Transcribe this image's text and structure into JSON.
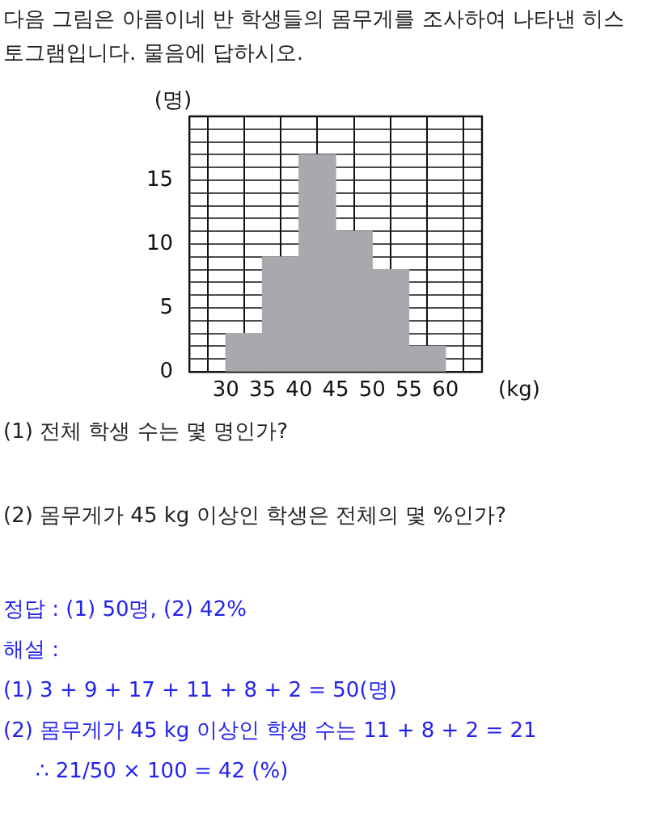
{
  "chart_data": {
    "type": "histogram",
    "title": "다음 그림은 아름이네 반 학생들의 몸무게를 조사하여 나타낸 히스토그램입니다. 물음에 답하시오.",
    "xlabel": "(kg)",
    "ylabel": "(명)",
    "bins": [
      30,
      35,
      40,
      45,
      50,
      55,
      60
    ],
    "values": [
      3,
      9,
      17,
      11,
      8,
      2
    ],
    "color": "#a9a9ad",
    "xlim": [
      25,
      65
    ],
    "xticks": [
      {
        "value": 25,
        "label": null
      },
      30,
      35,
      40,
      45,
      50,
      55,
      60
    ],
    "ylim": [
      0,
      20
    ],
    "yticks": [
      0,
      {
        "value": 1,
        "label": null
      },
      {
        "value": 2,
        "label": null
      },
      {
        "value": 3,
        "label": null
      },
      {
        "value": 4,
        "label": null
      },
      5,
      {
        "value": 6,
        "label": null
      },
      {
        "value": 7,
        "label": null
      },
      {
        "value": 8,
        "label": null
      },
      {
        "value": 9,
        "label": null
      },
      10,
      {
        "value": 11,
        "label": null
      },
      {
        "value": 12,
        "label": null
      },
      {
        "value": 13,
        "label": null
      },
      {
        "value": 14,
        "label": null
      },
      15,
      {
        "value": 16,
        "label": null
      },
      {
        "value": 17,
        "label": null
      },
      {
        "value": 18,
        "label": null
      },
      {
        "value": 19,
        "label": null
      },
      {
        "value": 20,
        "label": null
      }
    ],
    "grid": true,
    "annotations": [
      "(1) 전체 학생 수는 몇 명인가?",
      "(2) 몸무게가 45 kg 이상인 학생은 전체의 몇 %인가?",
      "정답 : (1) 50명, (2) 42%",
      "해설 :",
      "(1) 3 + 9 + 17 + 11 + 8 + 2 = 50(명)",
      "(2) 몸무게가 45 kg 이상인 학생 수는 11 + 8 + 2 = 21",
      "∴ 21/50 × 100 = 42 (%)"
    ]
  }
}
